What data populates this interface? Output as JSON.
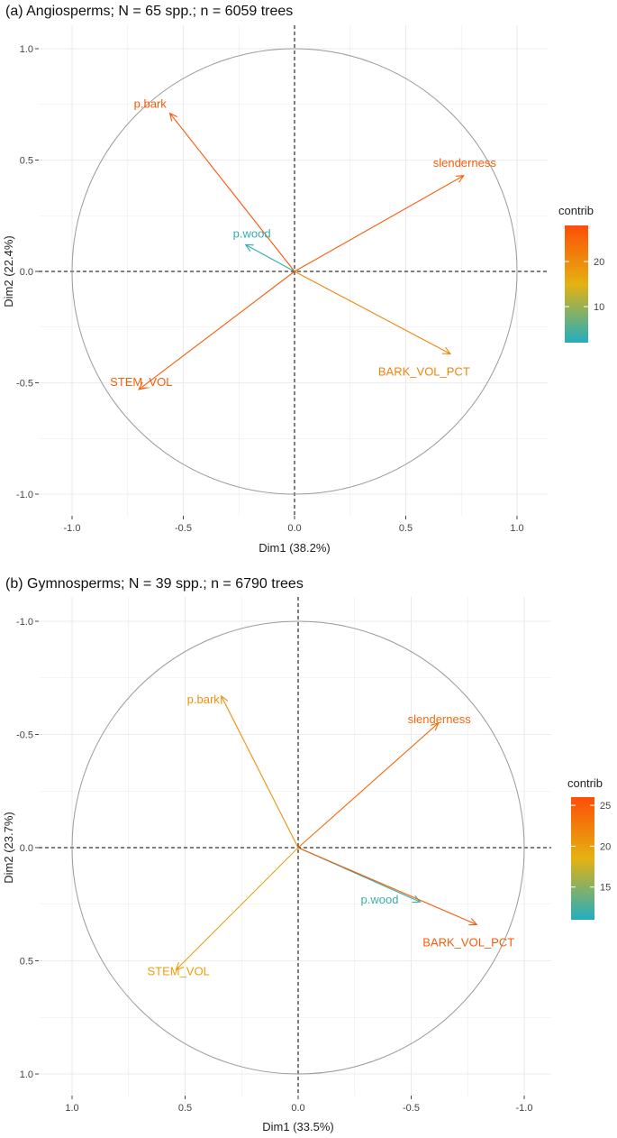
{
  "chart_data": [
    {
      "type": "scatter",
      "title": "(a) Angiosperms; N = 65 spp.; n = 6059 trees",
      "xlabel": "Dim1 (38.2%)",
      "ylabel": "Dim2 (22.4%)",
      "xlim": [
        -1.1,
        1.1
      ],
      "ylim": [
        -1.1,
        1.1
      ],
      "x_reversed": false,
      "y_reversed": false,
      "x_ticks": [
        -1.0,
        -0.5,
        0.0,
        0.5,
        1.0
      ],
      "x_tick_labels": [
        "-1.0",
        "-0.5",
        "0.0",
        "0.5",
        "1.0"
      ],
      "y_ticks": [
        -1.0,
        -0.5,
        0.0,
        0.5,
        1.0
      ],
      "y_tick_labels": [
        "-1.0",
        "-0.5",
        "0.0",
        "0.5",
        "1.0"
      ],
      "grid": true,
      "legend": {
        "title": "contrib",
        "placement": "right",
        "min": 2,
        "max": 28,
        "ticks": [
          10,
          20
        ],
        "tick_labels": [
          "10",
          "20"
        ]
      },
      "vectors": [
        {
          "name": "p.bark",
          "x": -0.56,
          "y": 0.71,
          "contrib": 27
        },
        {
          "name": "slenderness",
          "x": 0.76,
          "y": 0.43,
          "contrib": 26
        },
        {
          "name": "p.wood",
          "x": -0.22,
          "y": 0.12,
          "contrib": 3
        },
        {
          "name": "BARK_VOL_PCT",
          "x": 0.7,
          "y": -0.37,
          "contrib": 21
        },
        {
          "name": "STEM_VOL",
          "x": -0.7,
          "y": -0.53,
          "contrib": 26
        }
      ]
    },
    {
      "type": "scatter",
      "title": "(b) Gymnosperms; N = 39 spp.; n = 6790 trees",
      "xlabel": "Dim1 (33.5%)",
      "ylabel": "Dim2 (23.7%)",
      "xlim": [
        1.1,
        -1.1
      ],
      "ylim": [
        1.1,
        -1.1
      ],
      "x_reversed": true,
      "y_reversed": true,
      "x_ticks": [
        1.0,
        0.5,
        0.0,
        -0.5,
        -1.0
      ],
      "x_tick_labels": [
        "1.0",
        "0.5",
        "0.0",
        "-0.5",
        "-1.0"
      ],
      "y_ticks": [
        -1.0,
        -0.5,
        0.0,
        0.5,
        1.0
      ],
      "y_tick_labels": [
        "-1.0",
        "-0.5",
        "0.0",
        "0.5",
        "1.0"
      ],
      "grid": true,
      "legend": {
        "title": "contrib",
        "placement": "right",
        "min": 11,
        "max": 26,
        "ticks": [
          15,
          20,
          25
        ],
        "tick_labels": [
          "15",
          "20",
          "25"
        ]
      },
      "vectors": [
        {
          "name": "p.bark",
          "x": 0.34,
          "y": -0.67,
          "contrib": 21
        },
        {
          "name": "slenderness",
          "x": -0.62,
          "y": -0.55,
          "contrib": 24
        },
        {
          "name": "p.wood",
          "x": -0.54,
          "y": 0.24,
          "contrib": 12
        },
        {
          "name": "BARK_VOL_PCT",
          "x": -0.79,
          "y": 0.34,
          "contrib": 25
        },
        {
          "name": "STEM_VOL",
          "x": 0.54,
          "y": 0.54,
          "contrib": 20
        }
      ]
    }
  ],
  "colors": {
    "low": "#21aec0",
    "mid": "#e5b210",
    "high": "#fc4e07",
    "grid": "#ebebeb",
    "circle": "#9a9a9a"
  }
}
